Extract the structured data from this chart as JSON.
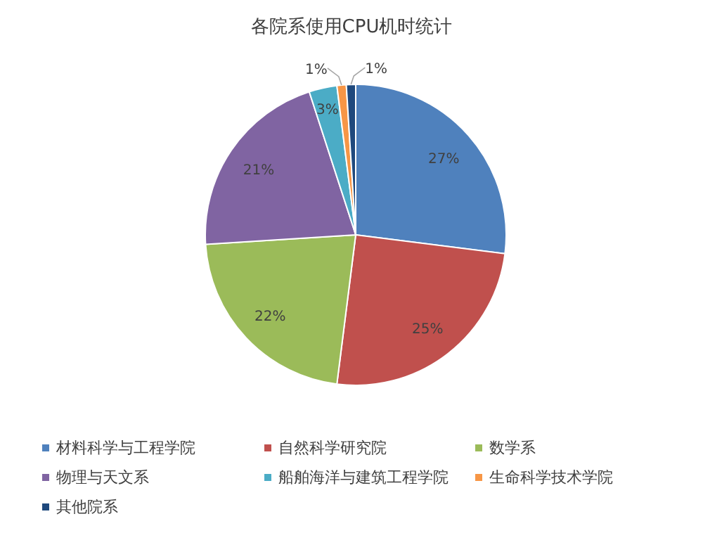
{
  "chart_data": {
    "type": "pie",
    "title": "各院系使用CPU机时统计",
    "categories": [
      "材料科学与工程学院",
      "自然科学研究院",
      "数学系",
      "物理与天文系",
      "船舶海洋与建筑工程学院",
      "生命科学技术学院",
      "其他院系"
    ],
    "values": [
      27,
      25,
      22,
      21,
      3,
      1,
      1
    ],
    "colors": [
      "#4f81bd",
      "#c0504d",
      "#9bbb59",
      "#8064a2",
      "#4bacc6",
      "#f79646",
      "#1f497d"
    ],
    "value_labels": [
      "27%",
      "25%",
      "22%",
      "21%",
      "3%",
      "1%",
      "1%"
    ],
    "legend": "bottom"
  }
}
